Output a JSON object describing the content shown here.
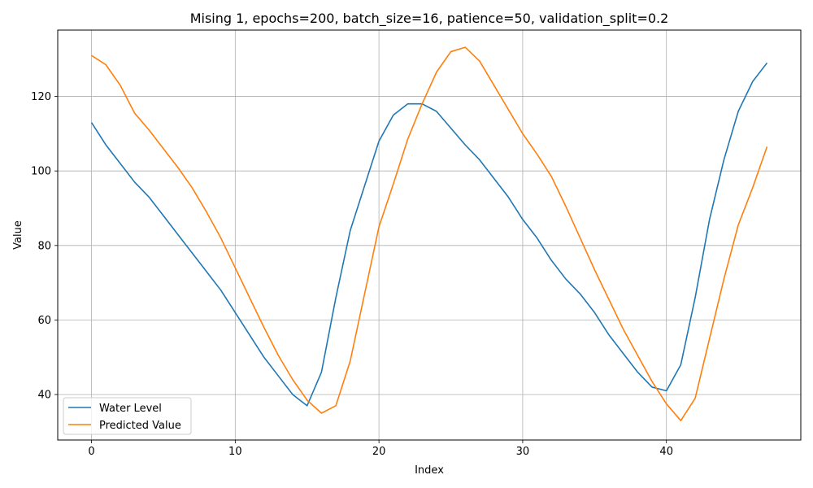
{
  "chart_data": {
    "type": "line",
    "title": "Mising 1, epochs=200, batch_size=16, patience=50, validation_split=0.2",
    "xlabel": "Index",
    "ylabel": "Value",
    "xlim": [
      -2.35,
      49.35
    ],
    "ylim": [
      27.8,
      137.8
    ],
    "xticks": [
      0,
      10,
      20,
      30,
      40
    ],
    "yticks": [
      40,
      60,
      80,
      100,
      120
    ],
    "grid": true,
    "legend_position": "lower-left",
    "x": [
      0,
      1,
      2,
      3,
      4,
      5,
      6,
      7,
      8,
      9,
      10,
      11,
      12,
      13,
      14,
      15,
      16,
      17,
      18,
      19,
      20,
      21,
      22,
      23,
      24,
      25,
      26,
      27,
      28,
      29,
      30,
      31,
      32,
      33,
      34,
      35,
      36,
      37,
      38,
      39,
      40,
      41,
      42,
      43,
      44,
      45,
      46,
      47
    ],
    "series": [
      {
        "name": "Water Level",
        "color": "#1f77b4",
        "values": [
          113,
          107,
          102,
          97,
          93,
          88,
          83,
          78,
          73,
          68,
          62,
          56,
          50,
          45,
          40,
          37,
          46,
          66,
          84,
          96,
          108,
          115,
          118,
          118,
          116,
          111.5,
          107,
          103,
          98,
          93,
          87,
          82,
          76,
          71,
          67,
          62,
          56,
          51,
          46,
          42,
          41,
          48,
          66,
          87,
          103,
          116,
          124,
          129
        ]
      },
      {
        "name": "Predicted Value",
        "color": "#ff7f0e",
        "values": [
          131,
          128.5,
          123,
          115.5,
          111,
          106,
          101,
          95.5,
          89,
          82,
          74,
          66,
          58,
          50.5,
          44,
          38.5,
          35,
          37,
          49,
          67,
          85,
          96.5,
          108.5,
          118,
          126.5,
          132,
          133.2,
          129.5,
          123,
          116.5,
          110,
          104.5,
          98.5,
          90.5,
          82,
          73.5,
          65.5,
          57.5,
          50.5,
          43.5,
          37.5,
          33,
          39,
          55,
          71,
          85.5,
          95.5,
          106.5
        ]
      }
    ]
  }
}
